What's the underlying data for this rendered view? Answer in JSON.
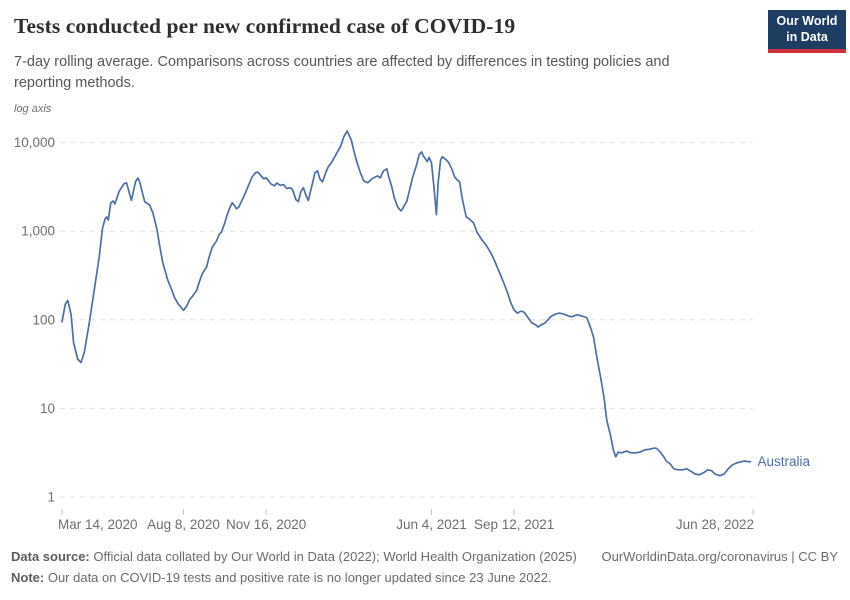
{
  "header": {
    "title": "Tests conducted per new confirmed case of COVID-19",
    "subtitle_line1": "7-day rolling average. Comparisons across countries are affected by differences in testing policies and",
    "subtitle_line2": "reporting methods.",
    "logo": {
      "line1": "Our World",
      "line2": "in Data",
      "bg_color": "#1d3d63",
      "stripe_color": "#cf303e"
    }
  },
  "chart_data": {
    "type": "line",
    "title": "Tests conducted per new confirmed case of COVID-19",
    "y_scale": "log",
    "y_axis_note": "log axis",
    "grid": true,
    "ylim": [
      1,
      14000
    ],
    "y_ticks": [
      1,
      10,
      100,
      1000,
      10000
    ],
    "y_tick_labels": [
      "1",
      "10",
      "100",
      "1,000",
      "10,000"
    ],
    "x_ticks": [
      {
        "label": "Mar 14, 2020",
        "day": 0
      },
      {
        "label": "Aug 8, 2020",
        "day": 147
      },
      {
        "label": "Nov 16, 2020",
        "day": 247
      },
      {
        "label": "Jun 4, 2021",
        "day": 447
      },
      {
        "label": "Sep 12, 2021",
        "day": 547
      },
      {
        "label": "Jun 28, 2022",
        "day": 836
      }
    ],
    "x_range_days": [
      0,
      836
    ],
    "legend_position": "end-of-line",
    "series": [
      {
        "name": "Australia",
        "color": "#4c6fa7",
        "points": [
          [
            0,
            95
          ],
          [
            4,
            150
          ],
          [
            7,
            165
          ],
          [
            11,
            115
          ],
          [
            14,
            55
          ],
          [
            19,
            36
          ],
          [
            23,
            33
          ],
          [
            27,
            43
          ],
          [
            33,
            93
          ],
          [
            39,
            215
          ],
          [
            45,
            510
          ],
          [
            49,
            1080
          ],
          [
            52,
            1370
          ],
          [
            54,
            1450
          ],
          [
            56,
            1340
          ],
          [
            59,
            2090
          ],
          [
            62,
            2200
          ],
          [
            64,
            2030
          ],
          [
            69,
            2800
          ],
          [
            75,
            3440
          ],
          [
            78,
            3520
          ],
          [
            82,
            2580
          ],
          [
            84,
            2230
          ],
          [
            89,
            3640
          ],
          [
            92,
            4000
          ],
          [
            94,
            3600
          ],
          [
            100,
            2150
          ],
          [
            104,
            2030
          ],
          [
            106,
            1980
          ],
          [
            110,
            1610
          ],
          [
            115,
            1030
          ],
          [
            118,
            700
          ],
          [
            122,
            440
          ],
          [
            128,
            280
          ],
          [
            133,
            215
          ],
          [
            136,
            180
          ],
          [
            140,
            154
          ],
          [
            145,
            134
          ],
          [
            147,
            128
          ],
          [
            151,
            143
          ],
          [
            154,
            167
          ],
          [
            158,
            185
          ],
          [
            163,
            215
          ],
          [
            166,
            266
          ],
          [
            170,
            336
          ],
          [
            175,
            394
          ],
          [
            178,
            510
          ],
          [
            182,
            665
          ],
          [
            187,
            780
          ],
          [
            190,
            910
          ],
          [
            193,
            980
          ],
          [
            197,
            1240
          ],
          [
            199,
            1450
          ],
          [
            203,
            1840
          ],
          [
            206,
            2090
          ],
          [
            209,
            1930
          ],
          [
            211,
            1790
          ],
          [
            214,
            1880
          ],
          [
            218,
            2260
          ],
          [
            222,
            2720
          ],
          [
            226,
            3350
          ],
          [
            230,
            4100
          ],
          [
            234,
            4560
          ],
          [
            237,
            4650
          ],
          [
            241,
            4200
          ],
          [
            244,
            3900
          ],
          [
            247,
            4000
          ],
          [
            253,
            3400
          ],
          [
            257,
            3250
          ],
          [
            260,
            3500
          ],
          [
            264,
            3300
          ],
          [
            268,
            3360
          ],
          [
            272,
            3030
          ],
          [
            276,
            3100
          ],
          [
            279,
            2950
          ],
          [
            283,
            2270
          ],
          [
            286,
            2160
          ],
          [
            289,
            2800
          ],
          [
            292,
            3100
          ],
          [
            295,
            2580
          ],
          [
            298,
            2220
          ],
          [
            302,
            3160
          ],
          [
            306,
            4560
          ],
          [
            309,
            4810
          ],
          [
            312,
            3900
          ],
          [
            315,
            3600
          ],
          [
            319,
            4560
          ],
          [
            322,
            5330
          ],
          [
            326,
            5930
          ],
          [
            330,
            6940
          ],
          [
            334,
            8110
          ],
          [
            337,
            9010
          ],
          [
            341,
            11700
          ],
          [
            345,
            13500
          ],
          [
            350,
            10700
          ],
          [
            353,
            8110
          ],
          [
            357,
            5930
          ],
          [
            361,
            4560
          ],
          [
            365,
            3700
          ],
          [
            370,
            3520
          ],
          [
            375,
            3900
          ],
          [
            379,
            4100
          ],
          [
            382,
            4210
          ],
          [
            385,
            4000
          ],
          [
            389,
            4810
          ],
          [
            393,
            5060
          ],
          [
            395,
            4210
          ],
          [
            399,
            3160
          ],
          [
            402,
            2380
          ],
          [
            406,
            1880
          ],
          [
            410,
            1700
          ],
          [
            412,
            1790
          ],
          [
            417,
            2160
          ],
          [
            420,
            2800
          ],
          [
            424,
            4000
          ],
          [
            429,
            5620
          ],
          [
            432,
            7280
          ],
          [
            435,
            7860
          ],
          [
            437,
            7100
          ],
          [
            442,
            6100
          ],
          [
            444,
            6800
          ],
          [
            447,
            5930
          ],
          [
            450,
            3160
          ],
          [
            453,
            1540
          ],
          [
            455,
            3500
          ],
          [
            458,
            6380
          ],
          [
            460,
            6940
          ],
          [
            465,
            6380
          ],
          [
            468,
            5930
          ],
          [
            472,
            4940
          ],
          [
            475,
            4100
          ],
          [
            478,
            3800
          ],
          [
            481,
            3600
          ],
          [
            484,
            2380
          ],
          [
            489,
            1450
          ],
          [
            493,
            1370
          ],
          [
            498,
            1240
          ],
          [
            502,
            980
          ],
          [
            508,
            800
          ],
          [
            513,
            700
          ],
          [
            519,
            565
          ],
          [
            524,
            450
          ],
          [
            529,
            347
          ],
          [
            534,
            267
          ],
          [
            539,
            202
          ],
          [
            543,
            155
          ],
          [
            547,
            129
          ],
          [
            551,
            119
          ],
          [
            555,
            125
          ],
          [
            559,
            122
          ],
          [
            563,
            108
          ],
          [
            568,
            93
          ],
          [
            573,
            88
          ],
          [
            576,
            83
          ],
          [
            580,
            88
          ],
          [
            585,
            93
          ],
          [
            591,
            108
          ],
          [
            597,
            116
          ],
          [
            602,
            119
          ],
          [
            607,
            116
          ],
          [
            612,
            111
          ],
          [
            617,
            108
          ],
          [
            623,
            114
          ],
          [
            628,
            111
          ],
          [
            632,
            108
          ],
          [
            635,
            105
          ],
          [
            640,
            79
          ],
          [
            643,
            64
          ],
          [
            647,
            38
          ],
          [
            652,
            21.5
          ],
          [
            656,
            12.8
          ],
          [
            659,
            7.4
          ],
          [
            664,
            4.8
          ],
          [
            667,
            3.4
          ],
          [
            670,
            2.85
          ],
          [
            673,
            3.2
          ],
          [
            677,
            3.15
          ],
          [
            683,
            3.3
          ],
          [
            688,
            3.15
          ],
          [
            694,
            3.15
          ],
          [
            699,
            3.2
          ],
          [
            705,
            3.4
          ],
          [
            710,
            3.45
          ],
          [
            716,
            3.55
          ],
          [
            719,
            3.55
          ],
          [
            724,
            3.2
          ],
          [
            728,
            2.85
          ],
          [
            731,
            2.55
          ],
          [
            736,
            2.36
          ],
          [
            740,
            2.08
          ],
          [
            745,
            2.03
          ],
          [
            751,
            2.03
          ],
          [
            756,
            2.08
          ],
          [
            762,
            1.92
          ],
          [
            766,
            1.82
          ],
          [
            771,
            1.78
          ],
          [
            776,
            1.87
          ],
          [
            781,
            2.03
          ],
          [
            786,
            1.98
          ],
          [
            790,
            1.82
          ],
          [
            796,
            1.74
          ],
          [
            801,
            1.82
          ],
          [
            806,
            2.08
          ],
          [
            811,
            2.3
          ],
          [
            816,
            2.42
          ],
          [
            822,
            2.5
          ],
          [
            826,
            2.55
          ],
          [
            830,
            2.5
          ],
          [
            833,
            2.5
          ]
        ]
      }
    ],
    "styles": {
      "gridline_color": "#e0e0e0",
      "tick_mark_color": "#c4c4c4",
      "axis_label_color": "#6e6e6e"
    }
  },
  "footer": {
    "datasource_label": "Data source:",
    "datasource_text": " Official data collated by Our World in Data (2022); World Health Organization (2025)",
    "link_text": "OurWorldinData.org/coronavirus | CC BY",
    "note_label": "Note:",
    "note_text": " Our data on COVID-19 tests and positive rate is no longer updated since 23 June 2022."
  }
}
